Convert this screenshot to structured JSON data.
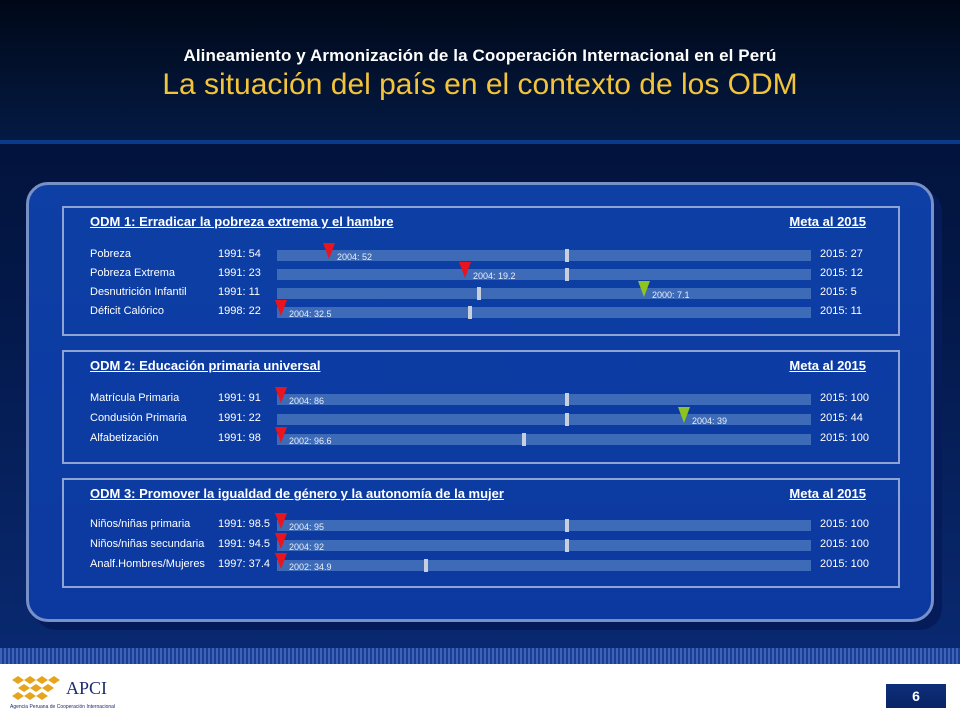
{
  "header": {
    "subtitle": "Alineamiento y Armonización de la Cooperación Internacional en el Perú",
    "title": "La situación del país en el contexto de los ODM"
  },
  "colors": {
    "marker_red": "#e8141e",
    "marker_green": "#8fc31f",
    "title_gold": "#f3c33a"
  },
  "sections": [
    {
      "heading": "ODM 1: Erradicar la pobreza extrema y el hambre",
      "meta_label": "Meta al 2015",
      "rows": [
        {
          "label": "Pobreza",
          "baseline": "1991: 54",
          "goal": "2015: 27",
          "marker_text": "2004: 52",
          "marker_color": "red",
          "marker_frac": 0.09,
          "tick_frac": 0.54
        },
        {
          "label": "Pobreza Extrema",
          "baseline": "1991: 23",
          "goal": "2015: 12",
          "marker_text": "2004: 19.2",
          "marker_color": "red",
          "marker_frac": 0.345,
          "tick_frac": 0.54
        },
        {
          "label": "Desnutrición Infantil",
          "baseline": "1991: 11",
          "goal": "2015: 5",
          "marker_text": "2000: 7.1",
          "marker_color": "green",
          "marker_frac": 0.68,
          "tick_frac": 0.375
        },
        {
          "label": "Déficit Calórico",
          "baseline": "1998: 22",
          "goal": "2015: 11",
          "marker_text": "2004: 32.5",
          "marker_color": "red",
          "marker_frac": 0.0,
          "tick_frac": 0.357
        }
      ]
    },
    {
      "heading": "ODM 2: Educación primaria universal",
      "meta_label": "Meta al 2015",
      "rows": [
        {
          "label": "Matrícula Primaria",
          "baseline": "1991: 91",
          "goal": "2015: 100",
          "marker_text": "2004: 86",
          "marker_color": "red",
          "marker_frac": 0.0,
          "tick_frac": 0.54
        },
        {
          "label": "Condusión Primaria",
          "baseline": "1991: 22",
          "goal": "2015: 44",
          "marker_text": "2004: 39",
          "marker_color": "green",
          "marker_frac": 0.755,
          "tick_frac": 0.54
        },
        {
          "label": "Alfabetización",
          "baseline": "1991: 98",
          "goal": "2015: 100",
          "marker_text": "2002: 96.6",
          "marker_color": "red",
          "marker_frac": 0.0,
          "tick_frac": 0.458
        }
      ]
    },
    {
      "heading": "ODM 3: Promover la igualdad de género y la autonomía de la mujer",
      "meta_label": "Meta al 2015",
      "rows": [
        {
          "label": "Niños/niñas primaria",
          "baseline": "1991: 98.5",
          "goal": "2015: 100",
          "marker_text": "2004: 95",
          "marker_color": "red",
          "marker_frac": 0.0,
          "tick_frac": 0.54
        },
        {
          "label": "Niños/niñas secundaria",
          "baseline": "1991: 94.5",
          "goal": "2015: 100",
          "marker_text": "2004: 92",
          "marker_color": "red",
          "marker_frac": 0.0,
          "tick_frac": 0.54
        },
        {
          "label": "Analf.Hombres/Mujeres",
          "baseline": "1997: 37.4",
          "goal": "2015: 100",
          "marker_text": "2002: 34.9",
          "marker_color": "red",
          "marker_frac": 0.0,
          "tick_frac": 0.275
        }
      ]
    }
  ],
  "footer": {
    "logo_text": "APCI",
    "logo_subtext": "Agencia Peruana de Cooperación Internacional",
    "page_number": "6"
  }
}
